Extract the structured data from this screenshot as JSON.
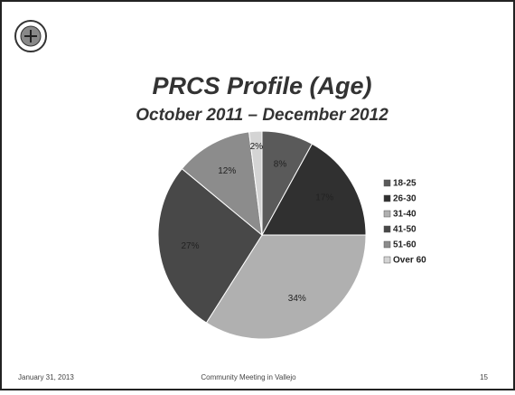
{
  "chart_data": {
    "type": "pie",
    "title": "PRCS Profile (Age)",
    "subtitle": "October 2011 – December 2012",
    "categories": [
      "18-25",
      "26-30",
      "31-40",
      "41-50",
      "51-60",
      "Over 60"
    ],
    "values": [
      8,
      17,
      34,
      27,
      12,
      2
    ],
    "value_labels": [
      "8%",
      "17%",
      "34%",
      "27%",
      "12%",
      "2%"
    ],
    "colors": [
      "#5a5a5a",
      "#303030",
      "#b0b0b0",
      "#484848",
      "#8c8c8c",
      "#d4d4d4"
    ]
  },
  "footer": {
    "date": "January 31, 2013",
    "center": "Community Meeting in Vallejo",
    "page": "15"
  }
}
